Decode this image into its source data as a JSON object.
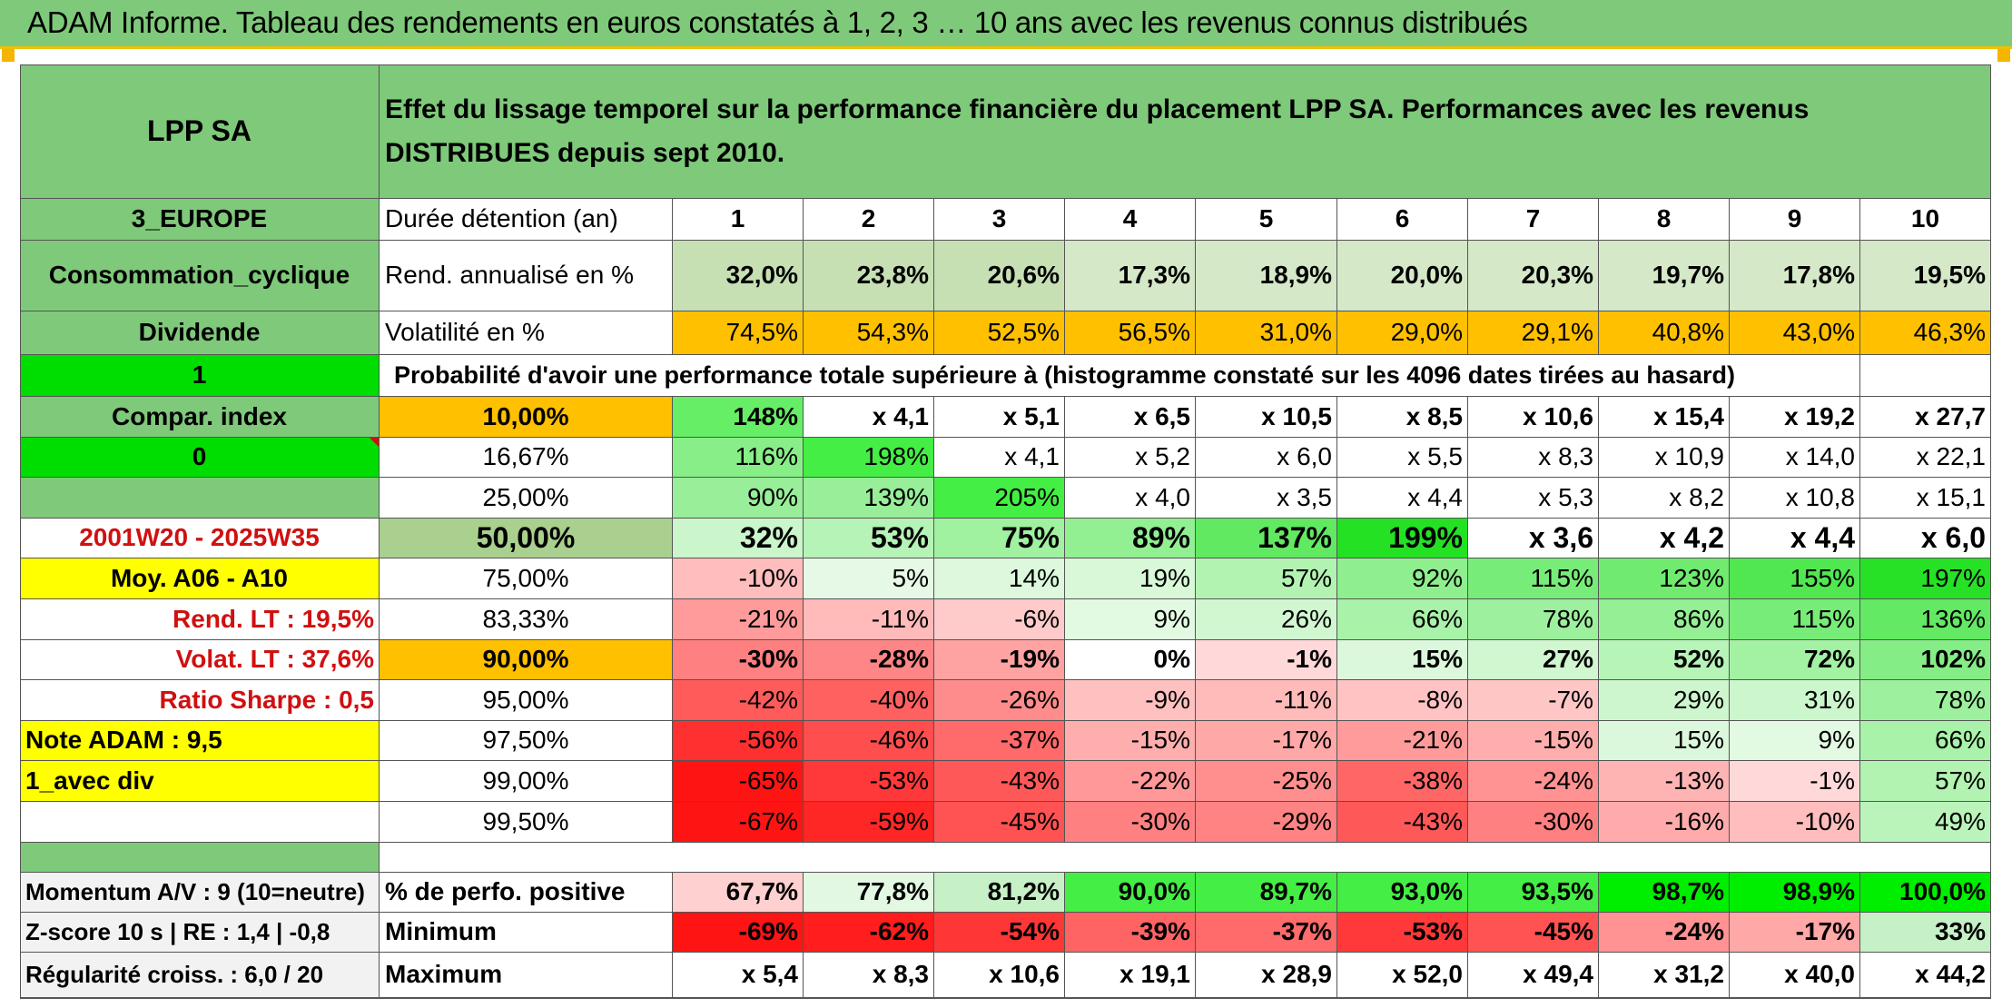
{
  "title": "ADAM Informe. Tableau des rendements en euros constatés à 1, 2, 3 … 10 ans avec les revenus connus distribués",
  "colors": {
    "green_header": "#7fc97a",
    "orange": "#ffc000",
    "yellow": "#ffff00",
    "bright_green": "#00dd00",
    "red_text": "#d01010"
  },
  "fund": {
    "name": "LPP SA",
    "zone": "3_EUROPE",
    "sector": "Consommation_cyclique",
    "type": "Dividende"
  },
  "header_text": "Effet du lissage temporel sur la performance financière du placement LPP SA. Performances avec les revenus DISTRIBUES depuis sept 2010.",
  "years_label": "Durée détention (an)",
  "years": [
    "1",
    "2",
    "3",
    "4",
    "5",
    "6",
    "7",
    "8",
    "9",
    "10"
  ],
  "rend_label": "Rend. annualisé en %",
  "rend": [
    "32,0%",
    "23,8%",
    "20,6%",
    "17,3%",
    "18,9%",
    "20,0%",
    "20,3%",
    "19,7%",
    "17,8%",
    "19,5%"
  ],
  "vol_label": "Volatilité en %",
  "vol": [
    "74,5%",
    "54,3%",
    "52,5%",
    "56,5%",
    "31,0%",
    "29,0%",
    "29,1%",
    "40,8%",
    "43,0%",
    "46,3%"
  ],
  "prob_index": "1",
  "prob_label": "Probabilité d'avoir une performance totale supérieure à (histogramme constaté sur les 4096 dates tirées au hasard)",
  "side": {
    "compar_label": "Compar. index",
    "zero": "0",
    "period": "2001W20 - 2025W35",
    "moy": "Moy. A06 - A10",
    "rend_lt": "Rend. LT :   19,5%",
    "volat_lt": "Volat. LT :   37,6%",
    "sharpe": "Ratio Sharpe :    0,5",
    "note": "Note ADAM : 9,5",
    "avec_div": "1_avec div"
  },
  "prob_rows": [
    {
      "pct": "10,00%",
      "vals": [
        "148%",
        "x 4,1",
        "x 5,1",
        "x 6,5",
        "x 10,5",
        "x 8,5",
        "x 10,6",
        "x 15,4",
        "x 19,2",
        "x 27,7"
      ]
    },
    {
      "pct": "16,67%",
      "vals": [
        "116%",
        "198%",
        "x 4,1",
        "x 5,2",
        "x 6,0",
        "x 5,5",
        "x 8,3",
        "x 10,9",
        "x 14,0",
        "x 22,1"
      ]
    },
    {
      "pct": "25,00%",
      "vals": [
        "90%",
        "139%",
        "205%",
        "x 4,0",
        "x 3,5",
        "x 4,4",
        "x 5,3",
        "x 8,2",
        "x 10,8",
        "x 15,1"
      ]
    },
    {
      "pct": "50,00%",
      "vals": [
        "32%",
        "53%",
        "75%",
        "89%",
        "137%",
        "199%",
        "x 3,6",
        "x 4,2",
        "x 4,4",
        "x 6,0"
      ]
    },
    {
      "pct": "75,00%",
      "vals": [
        "-10%",
        "5%",
        "14%",
        "19%",
        "57%",
        "92%",
        "115%",
        "123%",
        "155%",
        "197%"
      ]
    },
    {
      "pct": "83,33%",
      "vals": [
        "-21%",
        "-11%",
        "-6%",
        "9%",
        "26%",
        "66%",
        "78%",
        "86%",
        "115%",
        "136%"
      ]
    },
    {
      "pct": "90,00%",
      "vals": [
        "-30%",
        "-28%",
        "-19%",
        "0%",
        "-1%",
        "15%",
        "27%",
        "52%",
        "72%",
        "102%"
      ]
    },
    {
      "pct": "95,00%",
      "vals": [
        "-42%",
        "-40%",
        "-26%",
        "-9%",
        "-11%",
        "-8%",
        "-7%",
        "29%",
        "31%",
        "78%"
      ]
    },
    {
      "pct": "97,50%",
      "vals": [
        "-56%",
        "-46%",
        "-37%",
        "-15%",
        "-17%",
        "-21%",
        "-15%",
        "15%",
        "9%",
        "66%"
      ]
    },
    {
      "pct": "99,00%",
      "vals": [
        "-65%",
        "-53%",
        "-43%",
        "-22%",
        "-25%",
        "-38%",
        "-24%",
        "-13%",
        "-1%",
        "57%"
      ]
    },
    {
      "pct": "99,50%",
      "vals": [
        "-67%",
        "-59%",
        "-45%",
        "-30%",
        "-29%",
        "-43%",
        "-30%",
        "-16%",
        "-10%",
        "49%"
      ]
    }
  ],
  "bottom_rows": [
    {
      "side": "Momentum A/V : 9 (10=neutre)",
      "label": "% de perfo. positive",
      "vals": [
        "67,7%",
        "77,8%",
        "81,2%",
        "90,0%",
        "89,7%",
        "93,0%",
        "93,5%",
        "98,7%",
        "98,9%",
        "100,0%"
      ]
    },
    {
      "side": "Z-score 10 s | RE : 1,4 | -0,8",
      "label": "Minimum",
      "vals": [
        "-69%",
        "-62%",
        "-54%",
        "-39%",
        "-37%",
        "-53%",
        "-45%",
        "-24%",
        "-17%",
        "33%"
      ]
    },
    {
      "side": "Régularité croiss. : 6,0 / 20",
      "label": "Maximum",
      "vals": [
        "x 5,4",
        "x 8,3",
        "x 10,6",
        "x 19,1",
        "x 28,9",
        "x 52,0",
        "x 49,4",
        "x 31,2",
        "x 40,0",
        "x 44,2"
      ]
    }
  ]
}
